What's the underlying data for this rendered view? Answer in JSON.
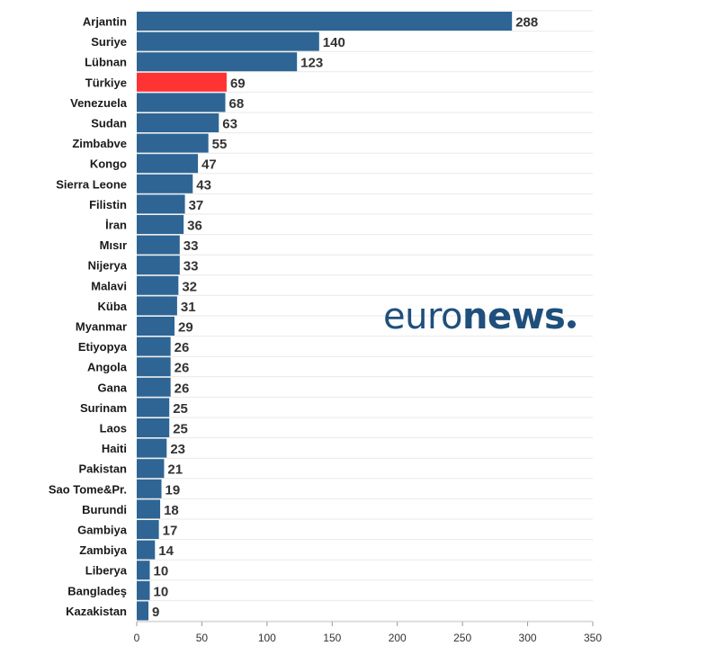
{
  "chart_data": {
    "type": "bar",
    "orientation": "horizontal",
    "categories": [
      "Arjantin",
      "Suriye",
      "Lübnan",
      "Türkiye",
      "Venezuela",
      "Sudan",
      "Zimbabve",
      "Kongo",
      "Sierra Leone",
      "Filistin",
      "İran",
      "Mısır",
      "Nijerya",
      "Malavi",
      "Küba",
      "Myanmar",
      "Etiyopya",
      "Angola",
      "Gana",
      "Surinam",
      "Laos",
      "Haiti",
      "Pakistan",
      "Sao Tome&Pr.",
      "Burundi",
      "Gambiya",
      "Zambiya",
      "Liberya",
      "Bangladeş",
      "Kazakistan"
    ],
    "values": [
      288,
      140,
      123,
      69,
      68,
      63,
      55,
      47,
      43,
      37,
      36,
      33,
      33,
      32,
      31,
      29,
      26,
      26,
      26,
      25,
      25,
      23,
      21,
      19,
      18,
      17,
      14,
      10,
      10,
      9
    ],
    "value_labels": [
      "288",
      "140",
      "123",
      "69",
      "68",
      "63",
      "55",
      "47",
      "43",
      "37",
      "36",
      "33",
      "33",
      "32",
      "31",
      "29",
      "26",
      "26",
      "26",
      "25",
      "25",
      "23",
      "21",
      "19",
      "18",
      "17",
      "14",
      "10",
      "10",
      "9"
    ],
    "highlight": "Türkiye",
    "colors": {
      "bar": "#2e6594",
      "highlight": "#ff3333"
    },
    "xlim": [
      0,
      350
    ],
    "x_ticks": [
      0,
      50,
      100,
      150,
      200,
      250,
      300,
      350
    ],
    "x_tick_labels": [
      "0",
      "50",
      "100",
      "150",
      "200",
      "250",
      "300",
      "350"
    ],
    "grid": true,
    "title": "",
    "xlabel": "",
    "ylabel": ""
  },
  "watermark": {
    "text_light": "euro",
    "text_bold": "news",
    "color": "#1f4f7c"
  }
}
